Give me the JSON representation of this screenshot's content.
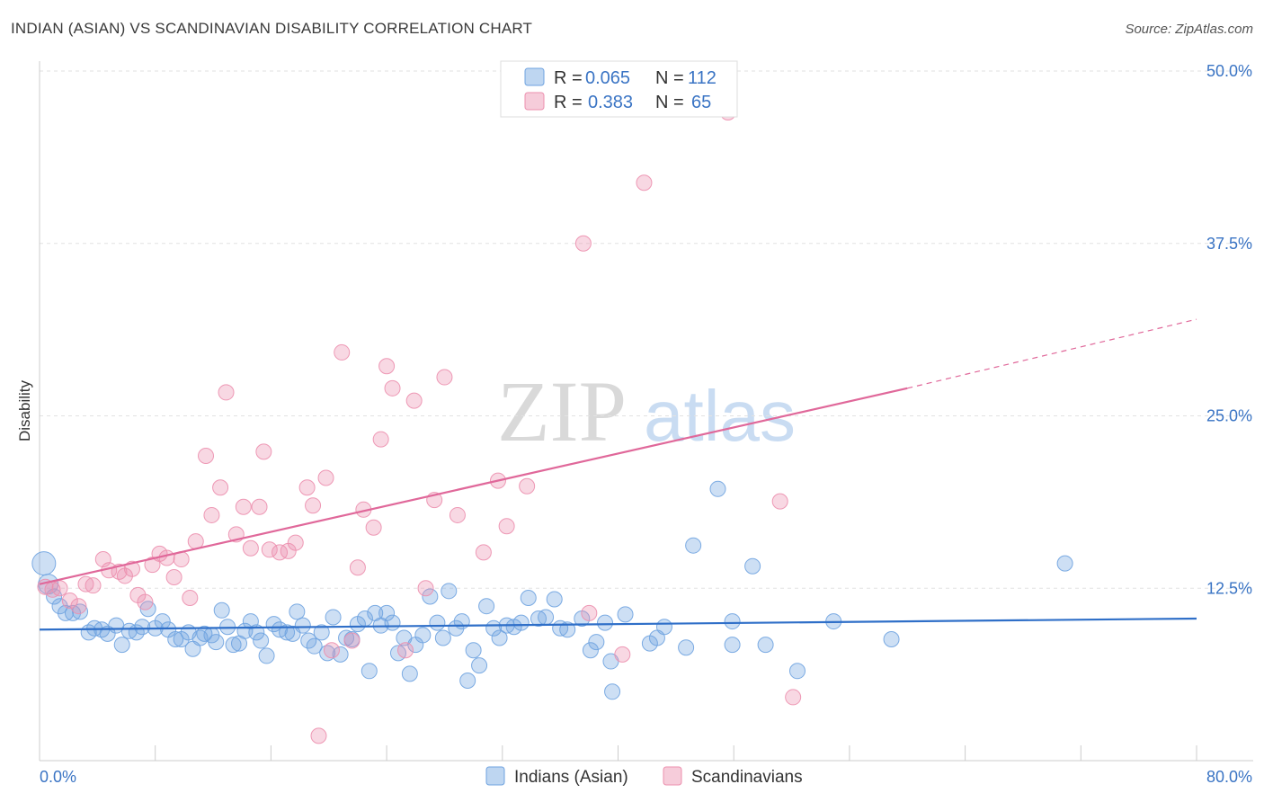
{
  "title": "INDIAN (ASIAN) VS SCANDINAVIAN DISABILITY CORRELATION CHART",
  "source": "Source: ZipAtlas.com",
  "watermark": {
    "part1": "ZIP",
    "part2": "atlas"
  },
  "legend": {
    "r_label": "R =",
    "n_label": "N =",
    "rows": [
      {
        "r": "0.065",
        "n": "112",
        "color": "#6fa3e0"
      },
      {
        "r": "0.383",
        "n": "65",
        "color": "#ec8fae"
      }
    ]
  },
  "chart_data": {
    "type": "scatter",
    "ylabel": "Disability",
    "xlim": [
      0,
      80
    ],
    "ylim": [
      0,
      50
    ],
    "x_tick_labels": [
      "0.0%",
      "80.0%"
    ],
    "y_ticks": [
      12.5,
      25.0,
      37.5,
      50.0
    ],
    "y_tick_labels": [
      "12.5%",
      "25.0%",
      "37.5%",
      "50.0%"
    ],
    "grid": "horizontal dashed",
    "series": [
      {
        "name": "Indians (Asian)",
        "color": "#6fa3e0",
        "line_color": "#2f6fc8",
        "trend": {
          "x": [
            0,
            80
          ],
          "y": [
            9.5,
            10.3
          ]
        },
        "points": [
          [
            0.3,
            14.3
          ],
          [
            0.6,
            12.8
          ],
          [
            1.0,
            11.9
          ],
          [
            1.4,
            11.2
          ],
          [
            1.8,
            10.7
          ],
          [
            2.3,
            10.7
          ],
          [
            2.8,
            10.8
          ],
          [
            3.4,
            9.3
          ],
          [
            3.8,
            9.6
          ],
          [
            4.3,
            9.5
          ],
          [
            4.7,
            9.2
          ],
          [
            5.3,
            9.8
          ],
          [
            5.7,
            8.4
          ],
          [
            6.2,
            9.4
          ],
          [
            6.7,
            9.3
          ],
          [
            7.1,
            9.7
          ],
          [
            7.5,
            11.0
          ],
          [
            8.0,
            9.6
          ],
          [
            8.5,
            10.1
          ],
          [
            8.9,
            9.5
          ],
          [
            9.4,
            8.8
          ],
          [
            9.8,
            8.8
          ],
          [
            10.3,
            9.3
          ],
          [
            10.6,
            8.1
          ],
          [
            11.1,
            8.9
          ],
          [
            11.4,
            9.2
          ],
          [
            11.9,
            9.1
          ],
          [
            12.2,
            8.6
          ],
          [
            12.6,
            10.9
          ],
          [
            13.0,
            9.7
          ],
          [
            13.4,
            8.4
          ],
          [
            13.8,
            8.5
          ],
          [
            14.2,
            9.4
          ],
          [
            14.6,
            10.1
          ],
          [
            15.0,
            9.3
          ],
          [
            15.3,
            8.7
          ],
          [
            15.7,
            7.6
          ],
          [
            16.2,
            9.9
          ],
          [
            16.6,
            9.5
          ],
          [
            17.1,
            9.3
          ],
          [
            17.5,
            9.2
          ],
          [
            17.8,
            10.8
          ],
          [
            18.2,
            9.8
          ],
          [
            18.6,
            8.7
          ],
          [
            19.0,
            8.3
          ],
          [
            19.5,
            9.3
          ],
          [
            19.9,
            7.8
          ],
          [
            20.3,
            10.4
          ],
          [
            20.8,
            7.7
          ],
          [
            21.2,
            8.9
          ],
          [
            21.6,
            8.8
          ],
          [
            22.0,
            9.9
          ],
          [
            22.5,
            10.3
          ],
          [
            22.8,
            6.5
          ],
          [
            23.2,
            10.7
          ],
          [
            23.6,
            9.8
          ],
          [
            24.0,
            10.7
          ],
          [
            24.4,
            10.0
          ],
          [
            24.8,
            7.8
          ],
          [
            25.2,
            8.9
          ],
          [
            25.6,
            6.3
          ],
          [
            26.0,
            8.4
          ],
          [
            26.5,
            9.1
          ],
          [
            27.0,
            11.9
          ],
          [
            27.5,
            10.0
          ],
          [
            27.9,
            8.9
          ],
          [
            28.3,
            12.3
          ],
          [
            28.8,
            9.6
          ],
          [
            29.2,
            10.1
          ],
          [
            29.6,
            5.8
          ],
          [
            30.0,
            8.0
          ],
          [
            30.4,
            6.9
          ],
          [
            30.9,
            11.2
          ],
          [
            31.4,
            9.6
          ],
          [
            31.8,
            8.9
          ],
          [
            32.3,
            9.8
          ],
          [
            32.8,
            9.7
          ],
          [
            33.3,
            10.0
          ],
          [
            33.8,
            11.8
          ],
          [
            34.5,
            10.3
          ],
          [
            35.0,
            10.4
          ],
          [
            35.6,
            11.7
          ],
          [
            36.0,
            9.6
          ],
          [
            36.5,
            9.5
          ],
          [
            37.5,
            10.3
          ],
          [
            38.1,
            8.0
          ],
          [
            38.5,
            8.6
          ],
          [
            39.1,
            10.0
          ],
          [
            39.5,
            7.2
          ],
          [
            39.6,
            5.0
          ],
          [
            40.5,
            10.6
          ],
          [
            42.2,
            8.5
          ],
          [
            42.7,
            8.9
          ],
          [
            43.2,
            9.7
          ],
          [
            44.7,
            8.2
          ],
          [
            45.2,
            15.6
          ],
          [
            46.9,
            19.7
          ],
          [
            47.9,
            8.4
          ],
          [
            47.9,
            10.1
          ],
          [
            49.3,
            14.1
          ],
          [
            50.2,
            8.4
          ],
          [
            52.4,
            6.5
          ],
          [
            54.9,
            10.1
          ],
          [
            58.9,
            8.8
          ],
          [
            70.9,
            14.3
          ]
        ]
      },
      {
        "name": "Scandinavians",
        "color": "#ec8fae",
        "line_color": "#e0689a",
        "trend": {
          "x": [
            0,
            60
          ],
          "y": [
            12.8,
            27.0
          ],
          "dashed_to": {
            "x": 80,
            "y": 32.0
          }
        },
        "points": [
          [
            0.4,
            12.6
          ],
          [
            0.9,
            12.4
          ],
          [
            1.4,
            12.5
          ],
          [
            2.1,
            11.6
          ],
          [
            2.7,
            11.2
          ],
          [
            3.2,
            12.8
          ],
          [
            3.7,
            12.7
          ],
          [
            4.4,
            14.6
          ],
          [
            4.8,
            13.8
          ],
          [
            5.5,
            13.7
          ],
          [
            5.9,
            13.4
          ],
          [
            6.4,
            13.9
          ],
          [
            6.8,
            12.0
          ],
          [
            7.3,
            11.5
          ],
          [
            7.8,
            14.2
          ],
          [
            8.3,
            15.0
          ],
          [
            8.8,
            14.7
          ],
          [
            9.3,
            13.3
          ],
          [
            9.8,
            14.6
          ],
          [
            10.4,
            11.8
          ],
          [
            10.8,
            15.9
          ],
          [
            11.5,
            22.1
          ],
          [
            11.9,
            17.8
          ],
          [
            12.5,
            19.8
          ],
          [
            12.9,
            26.7
          ],
          [
            13.6,
            16.4
          ],
          [
            14.1,
            18.4
          ],
          [
            14.6,
            15.4
          ],
          [
            15.2,
            18.4
          ],
          [
            15.5,
            22.4
          ],
          [
            15.9,
            15.3
          ],
          [
            16.6,
            15.1
          ],
          [
            17.2,
            15.2
          ],
          [
            17.7,
            15.8
          ],
          [
            18.5,
            19.8
          ],
          [
            18.9,
            18.5
          ],
          [
            19.8,
            20.5
          ],
          [
            20.2,
            8.0
          ],
          [
            20.9,
            29.6
          ],
          [
            21.6,
            8.7
          ],
          [
            22.0,
            14.0
          ],
          [
            22.4,
            18.2
          ],
          [
            23.1,
            16.9
          ],
          [
            23.6,
            23.3
          ],
          [
            24.0,
            28.6
          ],
          [
            24.4,
            27.0
          ],
          [
            25.3,
            8.0
          ],
          [
            25.9,
            26.1
          ],
          [
            26.7,
            12.5
          ],
          [
            27.3,
            18.9
          ],
          [
            28.0,
            27.8
          ],
          [
            28.9,
            17.8
          ],
          [
            30.7,
            15.1
          ],
          [
            31.7,
            20.3
          ],
          [
            32.3,
            17.0
          ],
          [
            33.7,
            19.9
          ],
          [
            37.6,
            37.5
          ],
          [
            38.0,
            10.7
          ],
          [
            40.3,
            7.7
          ],
          [
            41.8,
            41.9
          ],
          [
            47.6,
            47.0
          ],
          [
            51.2,
            18.8
          ],
          [
            52.1,
            4.6
          ],
          [
            19.3,
            1.8
          ]
        ]
      }
    ]
  }
}
